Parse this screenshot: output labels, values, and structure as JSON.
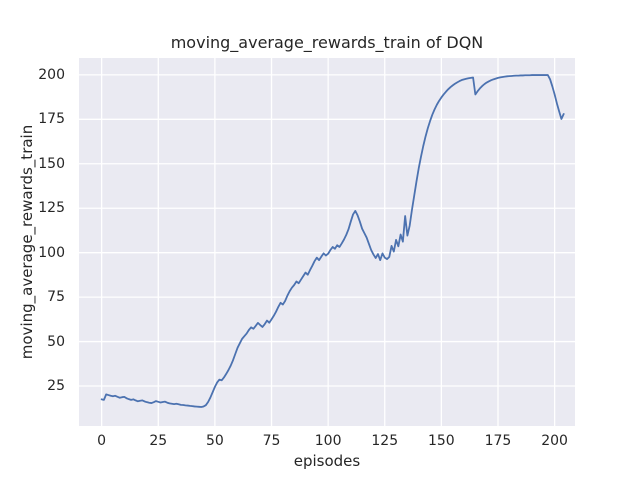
{
  "chart_data": {
    "type": "line",
    "title": "moving_average_rewards_train of DQN",
    "xlabel": "episodes",
    "ylabel": "moving_average_rewards_train",
    "xlim": [
      -10,
      209
    ],
    "ylim": [
      2.5,
      209.5
    ],
    "xticks": [
      0,
      25,
      50,
      75,
      100,
      125,
      150,
      175,
      200
    ],
    "yticks": [
      25,
      50,
      75,
      100,
      125,
      150,
      175,
      200
    ],
    "grid": true,
    "legend": "none",
    "style": {
      "line_color": "#4c72b0",
      "plot_bg": "#eaeaf2",
      "grid_color": "#ffffff",
      "text_color": "#262626",
      "figure_bg": "#ffffff"
    },
    "series": [
      {
        "name": "moving_average_rewards_train",
        "x_start": 0,
        "x_step": 1,
        "values": [
          17.5,
          17.2,
          20.3,
          19.9,
          19.5,
          19.2,
          19.5,
          18.9,
          18.4,
          18.7,
          18.9,
          18.1,
          17.6,
          17.2,
          17.5,
          16.9,
          16.4,
          16.7,
          16.9,
          16.3,
          15.9,
          15.6,
          15.4,
          15.9,
          16.5,
          16.1,
          15.7,
          16.0,
          16.2,
          15.6,
          15.2,
          15.0,
          14.8,
          15.0,
          14.7,
          14.4,
          14.3,
          14.1,
          14.0,
          13.8,
          13.7,
          13.5,
          13.4,
          13.3,
          13.2,
          13.5,
          14.2,
          16.0,
          18.5,
          21.5,
          24.5,
          27.0,
          28.6,
          28.2,
          29.8,
          31.8,
          34.0,
          36.5,
          39.5,
          43.0,
          46.5,
          49.0,
          51.5,
          53.0,
          54.5,
          56.5,
          58.0,
          57.2,
          58.8,
          60.5,
          59.3,
          58.2,
          59.8,
          61.8,
          60.6,
          62.5,
          64.5,
          66.8,
          69.5,
          71.8,
          70.8,
          72.8,
          75.8,
          78.3,
          80.3,
          81.8,
          83.8,
          82.8,
          84.8,
          86.8,
          88.8,
          87.6,
          90.2,
          92.6,
          95.2,
          97.2,
          95.8,
          97.8,
          99.6,
          98.4,
          99.4,
          101.5,
          103.2,
          102.2,
          104.2,
          103.2,
          105.2,
          107.4,
          110.0,
          113.2,
          117.5,
          121.5,
          123.5,
          121.0,
          117.5,
          113.5,
          111.0,
          108.5,
          105.0,
          101.5,
          99.0,
          97.0,
          99.2,
          95.8,
          99.6,
          97.2,
          96.4,
          97.6,
          103.8,
          100.6,
          107.2,
          103.6,
          110.2,
          106.2,
          120.6,
          109.6,
          115.2,
          124.0,
          132.0,
          140.0,
          147.5,
          154.0,
          160.0,
          165.3,
          170.0,
          174.0,
          177.6,
          180.6,
          183.2,
          185.4,
          187.3,
          189.0,
          190.5,
          191.9,
          193.1,
          194.1,
          195.0,
          195.8,
          196.5,
          197.1,
          197.5,
          197.8,
          198.1,
          198.3,
          198.5,
          189.0,
          190.8,
          192.4,
          193.7,
          194.8,
          195.7,
          196.4,
          197.0,
          197.5,
          197.9,
          198.3,
          198.6,
          198.8,
          199.0,
          199.2,
          199.3,
          199.4,
          199.5,
          199.6,
          199.6,
          199.7,
          199.7,
          199.8,
          199.8,
          199.8,
          199.9,
          199.9,
          199.9,
          199.9,
          199.9,
          199.9,
          199.9,
          199.9,
          197.5,
          193.5,
          189.0,
          184.0,
          179.5,
          175.2,
          178.0
        ]
      }
    ]
  }
}
